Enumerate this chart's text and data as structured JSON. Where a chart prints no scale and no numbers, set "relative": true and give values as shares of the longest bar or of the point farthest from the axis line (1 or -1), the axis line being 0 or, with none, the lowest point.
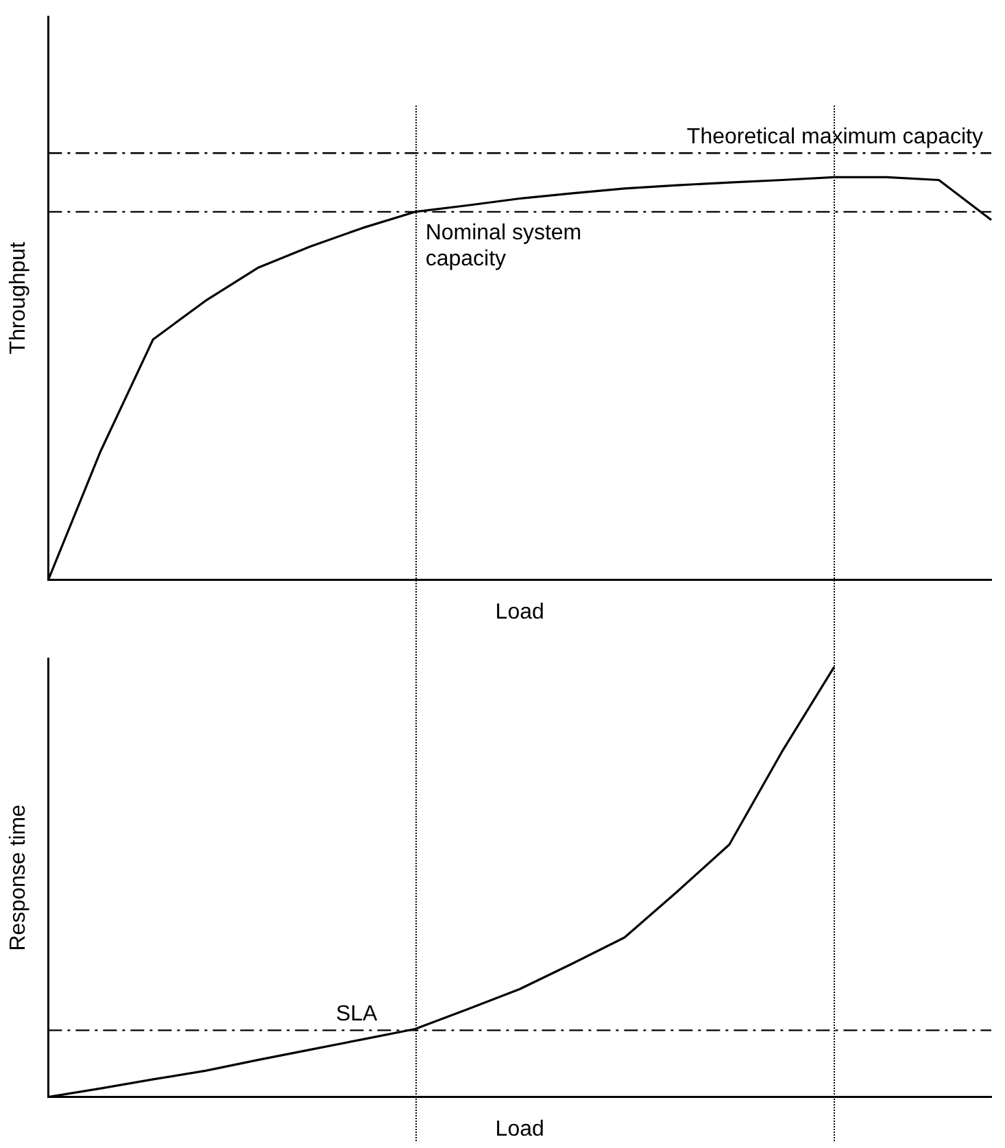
{
  "chart_data": [
    {
      "type": "line",
      "relative": true,
      "xlabel": "Load",
      "ylabel": "Throughput",
      "line_style": "solid",
      "color": "#000000",
      "categories": [
        null,
        null,
        null,
        null,
        null,
        null,
        null,
        null,
        null,
        null,
        null,
        null,
        null,
        null,
        null,
        null,
        null,
        null,
        null
      ],
      "values": [
        0,
        0.32,
        0.597,
        0.693,
        0.775,
        0.828,
        0.874,
        0.914,
        0.93,
        0.947,
        0.96,
        0.972,
        0.98,
        0.987,
        0.993,
        1,
        1,
        0.993,
        0.894
      ],
      "ref_lines": [
        {
          "axis": "y",
          "value": 1.06,
          "label": "Theoretical maximum capacity",
          "line_style": "dashed"
        },
        {
          "axis": "y",
          "value": 0.914,
          "label": "Nominal system capacity",
          "line_style": "dashed"
        }
      ]
    },
    {
      "type": "line",
      "relative": true,
      "xlabel": "Load",
      "ylabel": "Response time",
      "line_style": "solid",
      "color": "#000000",
      "categories": [
        null,
        null,
        null,
        null,
        null,
        null,
        null,
        null,
        null,
        null,
        null,
        null,
        null,
        null,
        null,
        null,
        null,
        null,
        null
      ],
      "values": [
        0,
        0.02,
        0.041,
        0.061,
        0.086,
        0.11,
        0.134,
        0.158,
        0.204,
        0.251,
        0.31,
        0.371,
        0.477,
        0.587,
        0.802,
        1,
        null,
        null,
        null
      ],
      "ref_lines": [
        {
          "axis": "y",
          "value": 0.155,
          "label": "SLA",
          "line_style": "dashed"
        }
      ]
    }
  ]
}
